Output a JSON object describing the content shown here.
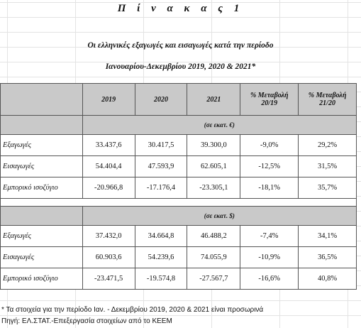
{
  "title": "Π ί ν α κ α ς   1",
  "subtitle_line1": "Οι ελληνικές εξαγωγές και εισαγωγές κατά την περίοδο",
  "subtitle_line2": "Ιανουαρίου-Δεκεμβρίου 2019, 2020 & 2021*",
  "columns": [
    "2019",
    "2020",
    "2021",
    "% Μεταβολή 20/19",
    "% Μεταβολή 21/20"
  ],
  "sections": [
    {
      "unit": "(σε εκατ. €)",
      "rows": [
        {
          "label": "Εξαγωγές",
          "values": [
            "33.437,6",
            "30.417,5",
            "39.300,0",
            "-9,0%",
            "29,2%"
          ]
        },
        {
          "label": "Εισαγωγές",
          "values": [
            "54.404,4",
            "47.593,9",
            "62.605,1",
            "-12,5%",
            "31,5%"
          ]
        },
        {
          "label": "Εμπορικό ισοζύγιο",
          "values": [
            "-20.966,8",
            "-17.176,4",
            "-23.305,1",
            "-18,1%",
            "35,7%"
          ]
        }
      ]
    },
    {
      "unit": "(σε εκατ. $)",
      "rows": [
        {
          "label": "Εξαγωγές",
          "values": [
            "37.432,0",
            "34.664,8",
            "46.488,2",
            "-7,4%",
            "34,1%"
          ]
        },
        {
          "label": "Εισαγωγές",
          "values": [
            "60.903,6",
            "54.239,6",
            "74.055,9",
            "-10,9%",
            "36,5%"
          ]
        },
        {
          "label": "Εμπορικό ισοζύγιο",
          "values": [
            "-23.471,5",
            "-19.574,8",
            "-27.567,7",
            "-16,6%",
            "40,8%"
          ]
        }
      ]
    }
  ],
  "footnote1": "* Τα στοιχεία για την περίοδο Ιαν. - Δεκεμβρίου 2019, 2020 & 2021 είναι προσωρινά",
  "footnote2": "Πηγή: ΕΛ.ΣΤΑΤ.-Επεξεργασία στοιχείων από το ΚΕΕΜ",
  "colors": {
    "header_gray": "#c9c9c9",
    "border": "#555555"
  }
}
